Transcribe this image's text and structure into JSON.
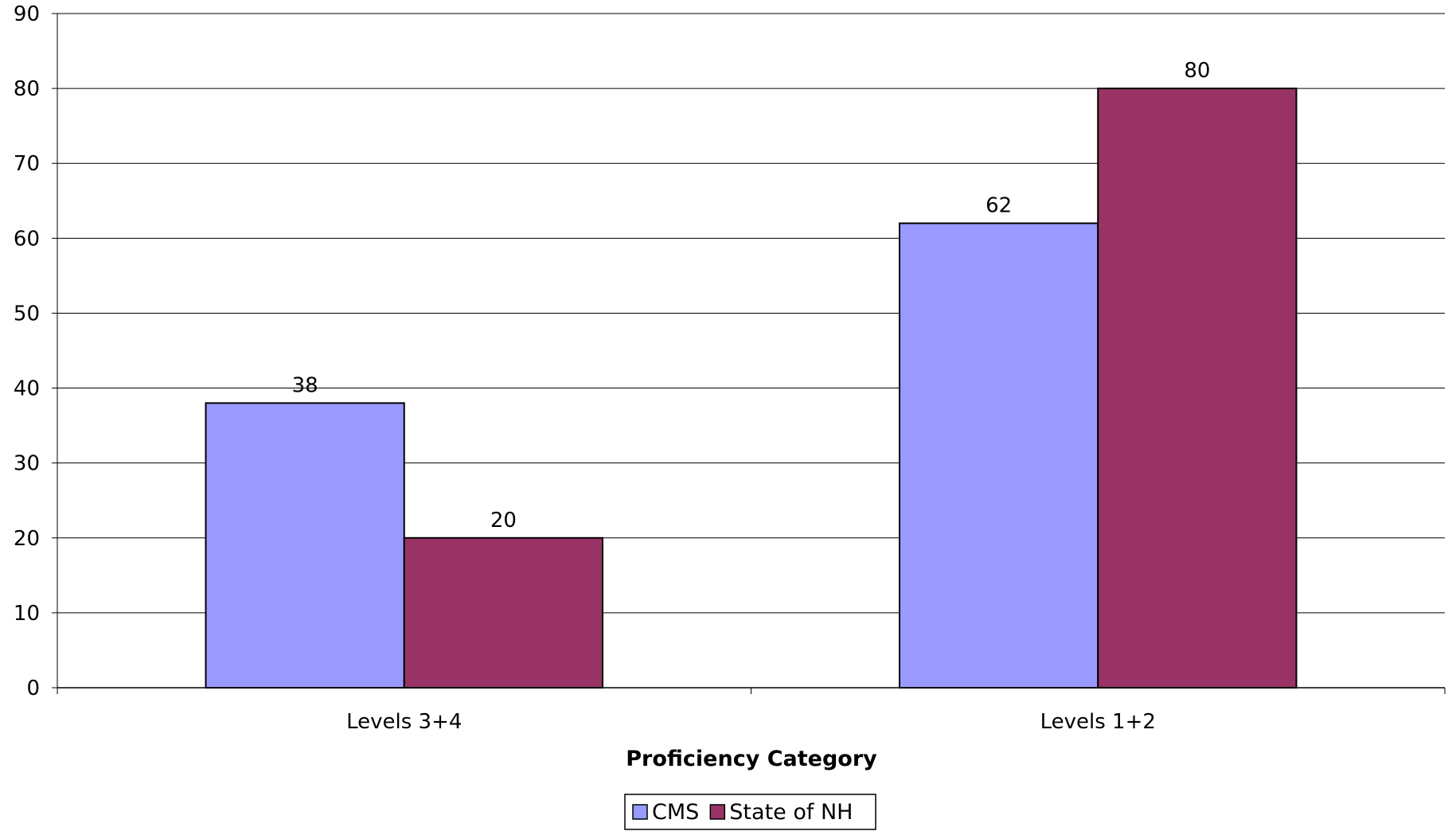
{
  "chart_data": {
    "type": "bar",
    "title": "",
    "xlabel": "Proficiency Category",
    "ylabel": "",
    "categories": [
      "Levels 3+4",
      "Levels 1+2"
    ],
    "series": [
      {
        "name": "CMS",
        "values": [
          38,
          62
        ],
        "color": "#9999ff"
      },
      {
        "name": "State of NH",
        "values": [
          20,
          80
        ],
        "color": "#993366"
      }
    ],
    "ylim": [
      0,
      90
    ],
    "yticks": [
      0,
      10,
      20,
      30,
      40,
      50,
      60,
      70,
      80,
      90
    ],
    "grid": true,
    "legend": "bottom-center",
    "data_labels": true
  }
}
